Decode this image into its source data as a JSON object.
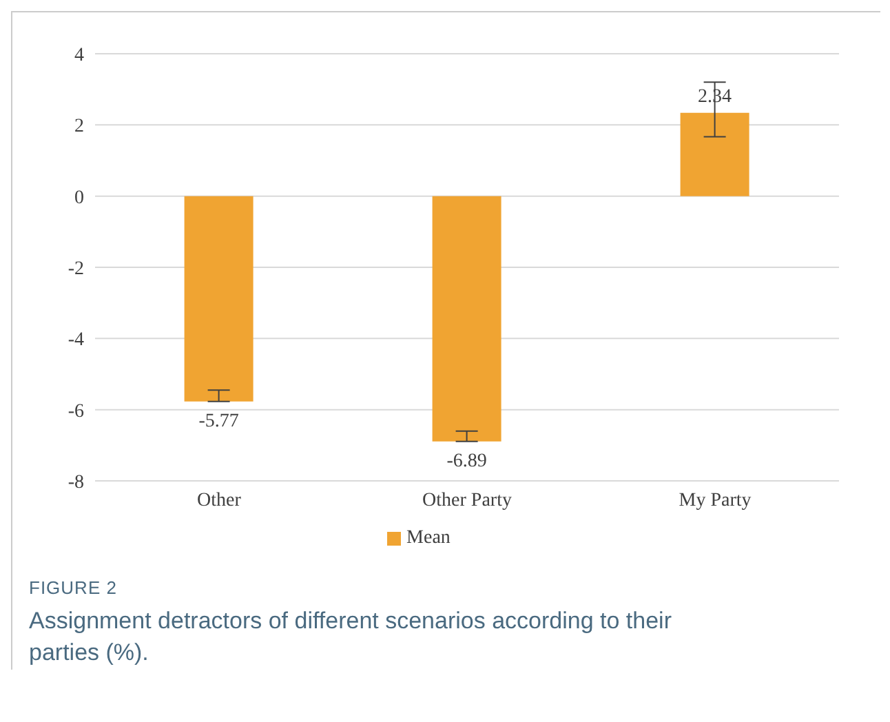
{
  "chart_data": {
    "type": "bar",
    "title": "FIGURE 2",
    "subtitle": "Assignment detractors of different scenarios according to their parties (%).",
    "categories": [
      "Other",
      "Other Party",
      "My Party"
    ],
    "series": [
      {
        "name": "Mean",
        "color": "#f0a432",
        "values": [
          -5.77,
          -6.89,
          2.34
        ],
        "errors": [
          [
            -5.77,
            -5.45
          ],
          [
            -6.89,
            -6.6
          ],
          [
            1.67,
            3.2
          ]
        ]
      }
    ],
    "ylim": [
      -8,
      4
    ],
    "yticks": [
      -8,
      -6,
      -4,
      -2,
      0,
      2,
      4
    ],
    "grid": "y",
    "legend": "bottom",
    "data_labels": true
  }
}
